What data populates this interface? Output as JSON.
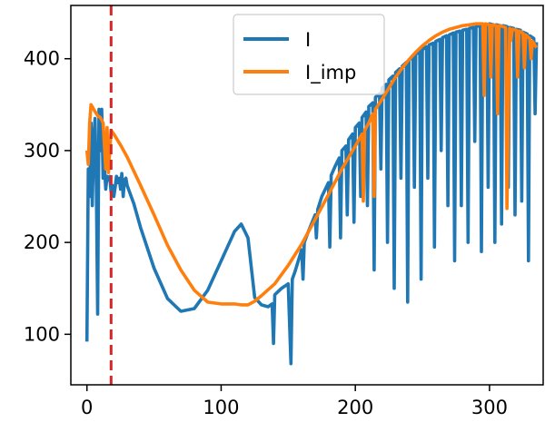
{
  "chart_data": {
    "type": "line",
    "title": "",
    "xlabel": "",
    "ylabel": "",
    "xlim": [
      -12,
      340
    ],
    "ylim": [
      45,
      458
    ],
    "x_ticks": [
      0,
      100,
      200,
      300
    ],
    "y_ticks": [
      100,
      200,
      300,
      400
    ],
    "legend": {
      "placement": "upper-center"
    },
    "grid": false,
    "vline": {
      "x": 18,
      "color": "#d62728",
      "style": "dashed"
    },
    "series": [
      {
        "name": "I",
        "color": "#1f77b4",
        "x": [
          0,
          1,
          2,
          3,
          4,
          5,
          6,
          7,
          8,
          9,
          10,
          11,
          12,
          13,
          14,
          15,
          16,
          17,
          18,
          19,
          20,
          21,
          22,
          23,
          24,
          25,
          26,
          27,
          28,
          29,
          30,
          35,
          40,
          50,
          60,
          70,
          80,
          90,
          100,
          110,
          115,
          120,
          125,
          130,
          135,
          138,
          139,
          140,
          145,
          150,
          152,
          153,
          155,
          160,
          161,
          162,
          165,
          170,
          171,
          172,
          175,
          180,
          181,
          182,
          185,
          188,
          189,
          190,
          193,
          194,
          195,
          198,
          199,
          200,
          203,
          204,
          205,
          208,
          209,
          210,
          213,
          214,
          215,
          218,
          219,
          220,
          223,
          224,
          225,
          228,
          229,
          230,
          233,
          234,
          235,
          238,
          239,
          240,
          243,
          244,
          245,
          248,
          249,
          250,
          253,
          254,
          255,
          258,
          259,
          260,
          263,
          264,
          265,
          268,
          269,
          270,
          273,
          274,
          275,
          278,
          279,
          280,
          283,
          284,
          285,
          288,
          289,
          290,
          293,
          294,
          295,
          298,
          299,
          300,
          303,
          304,
          305,
          308,
          309,
          310,
          313,
          314,
          315,
          318,
          319,
          320,
          323,
          324,
          325,
          328,
          329,
          330,
          333,
          334,
          335
        ],
        "y": [
          92,
          280,
          250,
          330,
          240,
          310,
          335,
          260,
          122,
          345,
          300,
          345,
          270,
          285,
          258,
          272,
          268,
          272,
          255,
          262,
          250,
          260,
          272,
          265,
          270,
          258,
          275,
          250,
          268,
          270,
          262,
          242,
          216,
          172,
          139,
          125,
          128,
          148,
          180,
          212,
          220,
          205,
          140,
          132,
          130,
          133,
          90,
          143,
          150,
          155,
          68,
          160,
          168,
          192,
          160,
          200,
          212,
          230,
          205,
          236,
          250,
          265,
          195,
          273,
          283,
          292,
          205,
          300,
          305,
          230,
          312,
          318,
          222,
          325,
          330,
          250,
          336,
          342,
          240,
          348,
          352,
          170,
          358,
          362,
          280,
          368,
          372,
          200,
          377,
          381,
          150,
          385,
          389,
          270,
          392,
          396,
          135,
          399,
          402,
          260,
          405,
          408,
          160,
          410,
          413,
          270,
          415,
          417,
          195,
          419,
          421,
          300,
          423,
          425,
          240,
          426,
          428,
          180,
          429,
          430,
          240,
          431,
          432,
          200,
          433,
          434,
          310,
          435,
          436,
          190,
          436,
          437,
          260,
          438,
          437,
          200,
          437,
          436,
          220,
          436,
          435,
          260,
          434,
          433,
          230,
          432,
          431,
          245,
          429,
          427,
          180,
          425,
          422,
          340,
          418
        ]
      },
      {
        "name": "I_imp",
        "color": "#ff7f0e",
        "x": [
          0,
          1,
          2,
          3,
          5,
          8,
          10,
          12,
          14,
          15,
          16,
          18,
          20,
          25,
          30,
          40,
          50,
          60,
          70,
          80,
          90,
          100,
          110,
          115,
          120,
          125,
          130,
          140,
          150,
          160,
          170,
          180,
          190,
          200,
          205,
          206,
          207,
          210,
          213,
          214,
          215,
          220,
          225,
          230,
          235,
          240,
          245,
          250,
          255,
          260,
          265,
          270,
          275,
          280,
          285,
          290,
          295,
          296,
          297,
          300,
          301,
          302,
          305,
          306,
          307,
          310,
          312,
          313,
          315,
          316,
          317,
          320,
          321,
          322,
          325,
          326,
          327,
          330,
          331,
          332,
          335
        ],
        "y": [
          300,
          285,
          330,
          350,
          345,
          338,
          336,
          330,
          280,
          325,
          276,
          322,
          318,
          306,
          293,
          262,
          230,
          197,
          170,
          148,
          135,
          133,
          133,
          132,
          132,
          136,
          142,
          155,
          175,
          198,
          225,
          252,
          280,
          305,
          318,
          245,
          322,
          330,
          340,
          250,
          345,
          356,
          368,
          380,
          390,
          399,
          407,
          414,
          420,
          425,
          429,
          432,
          434,
          436,
          437,
          438,
          438,
          360,
          438,
          437,
          380,
          437,
          436,
          340,
          436,
          435,
          434,
          237,
          433,
          420,
          432,
          431,
          380,
          430,
          428,
          390,
          426,
          422,
          400,
          419,
          412
        ]
      }
    ]
  }
}
